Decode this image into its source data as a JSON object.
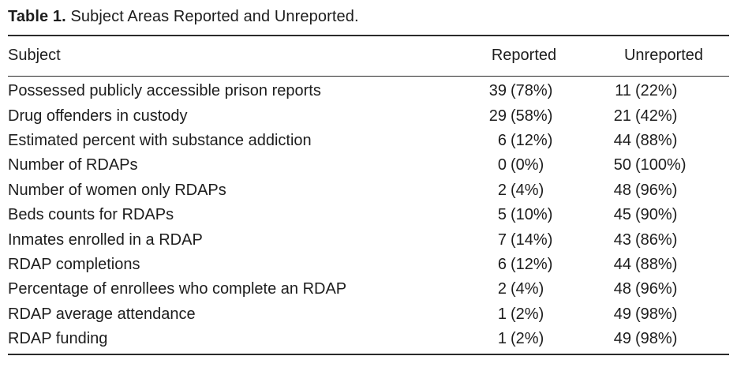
{
  "table": {
    "title_label": "Table 1.",
    "title_text": "Subject Areas Reported and Unreported.",
    "columns": [
      "Subject",
      "Reported",
      "Unreported"
    ],
    "rows": [
      {
        "subject": "Possessed publicly accessible prison reports",
        "reported_count": "39",
        "reported_pct": "(78%)",
        "unreported_count": "11",
        "unreported_pct": "(22%)"
      },
      {
        "subject": "Drug offenders in custody",
        "reported_count": "29",
        "reported_pct": "(58%)",
        "unreported_count": "21",
        "unreported_pct": "(42%)"
      },
      {
        "subject": "Estimated percent with substance addiction",
        "reported_count": "6",
        "reported_pct": "(12%)",
        "unreported_count": "44",
        "unreported_pct": "(88%)"
      },
      {
        "subject": "Number of RDAPs",
        "reported_count": "0",
        "reported_pct": "(0%)",
        "unreported_count": "50",
        "unreported_pct": "(100%)"
      },
      {
        "subject": "Number of women only RDAPs",
        "reported_count": "2",
        "reported_pct": "(4%)",
        "unreported_count": "48",
        "unreported_pct": "(96%)"
      },
      {
        "subject": "Beds counts for RDAPs",
        "reported_count": "5",
        "reported_pct": "(10%)",
        "unreported_count": "45",
        "unreported_pct": "(90%)"
      },
      {
        "subject": "Inmates enrolled in a RDAP",
        "reported_count": "7",
        "reported_pct": "(14%)",
        "unreported_count": "43",
        "unreported_pct": "(86%)"
      },
      {
        "subject": "RDAP completions",
        "reported_count": "6",
        "reported_pct": "(12%)",
        "unreported_count": "44",
        "unreported_pct": "(88%)"
      },
      {
        "subject": "Percentage of enrollees who complete an RDAP",
        "reported_count": "2",
        "reported_pct": "(4%)",
        "unreported_count": "48",
        "unreported_pct": "(96%)"
      },
      {
        "subject": "RDAP average attendance",
        "reported_count": "1",
        "reported_pct": "(2%)",
        "unreported_count": "49",
        "unreported_pct": "(98%)"
      },
      {
        "subject": "RDAP funding",
        "reported_count": "1",
        "reported_pct": "(2%)",
        "unreported_count": "49",
        "unreported_pct": "(98%)"
      }
    ],
    "colors": {
      "text": "#1d1d1d",
      "rule": "#2b2b2b",
      "background": "#ffffff"
    }
  }
}
